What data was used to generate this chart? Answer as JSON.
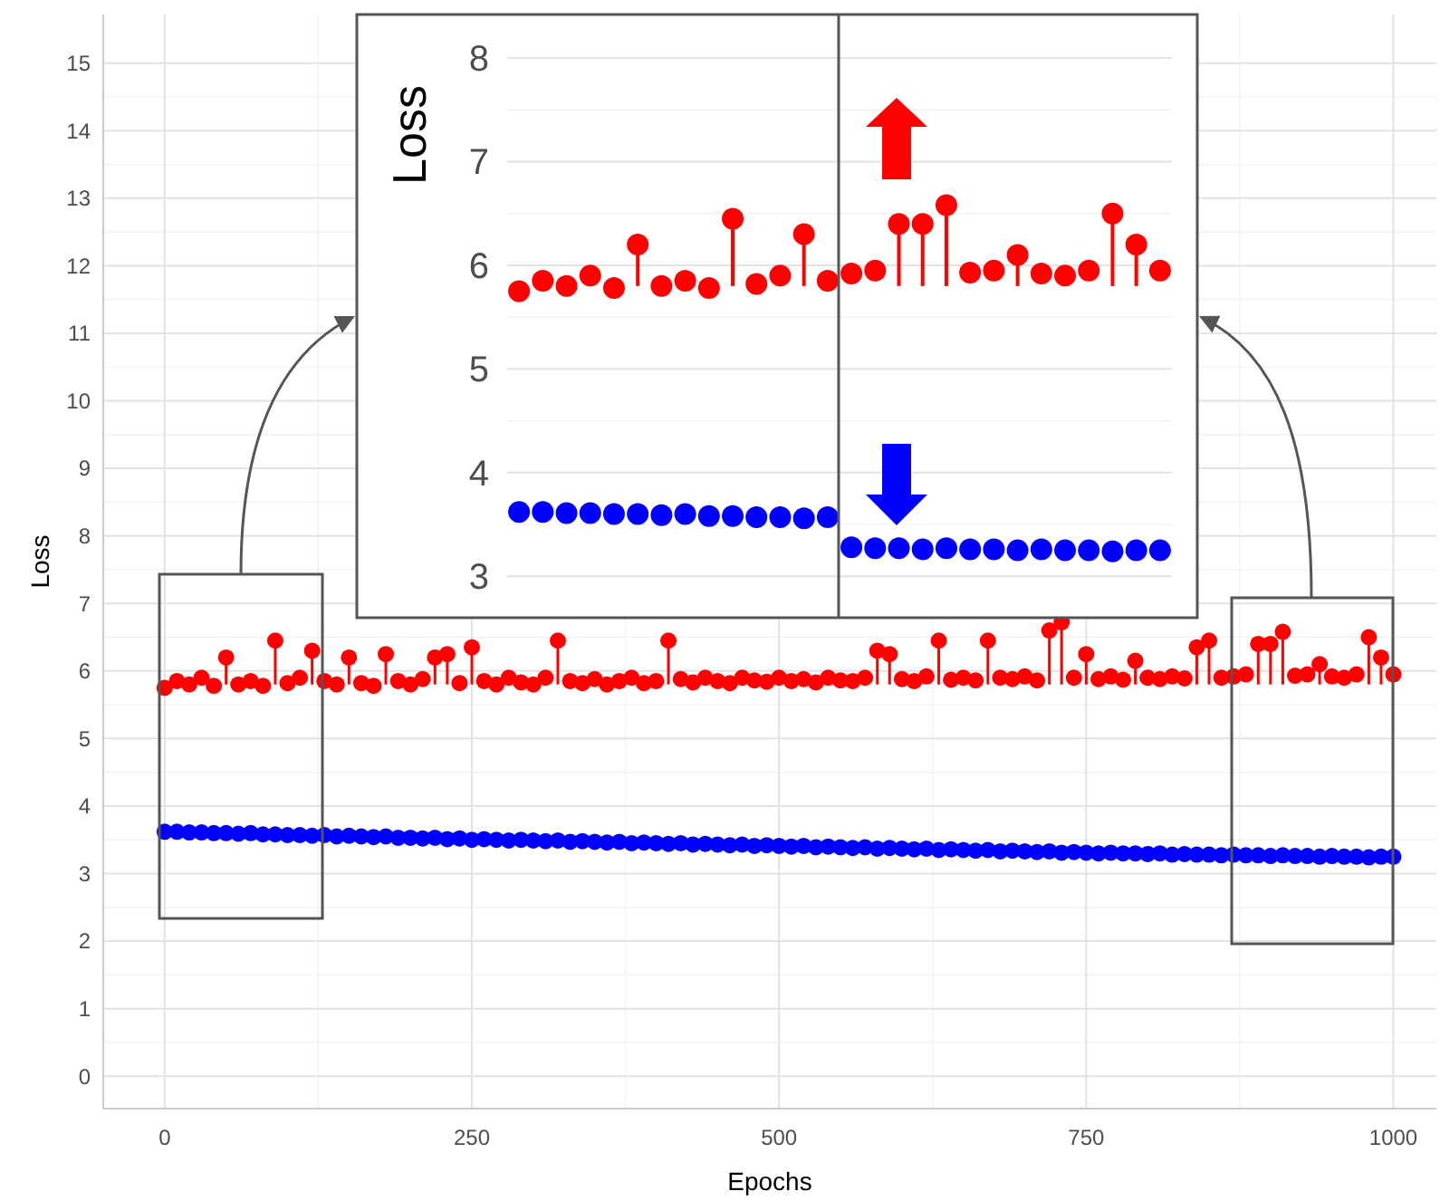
{
  "chart_data": [
    {
      "type": "scatter",
      "xlabel": "Epochs",
      "ylabel": "Loss",
      "xlim": [
        -50,
        1035
      ],
      "ylim": [
        -0.48,
        15.72
      ],
      "xticks": [
        0,
        250,
        500,
        750,
        1000
      ],
      "yticks": [
        0,
        1,
        2,
        3,
        4,
        5,
        6,
        7,
        8,
        9,
        10,
        11,
        12,
        13,
        14,
        15
      ],
      "grid": true,
      "marker": "circle",
      "x": [
        0,
        10,
        20,
        30,
        40,
        50,
        60,
        70,
        80,
        90,
        100,
        110,
        120,
        130,
        140,
        150,
        160,
        170,
        180,
        190,
        200,
        210,
        220,
        230,
        240,
        250,
        260,
        270,
        280,
        290,
        300,
        310,
        320,
        330,
        340,
        350,
        360,
        370,
        380,
        390,
        400,
        410,
        420,
        430,
        440,
        450,
        460,
        470,
        480,
        490,
        500,
        510,
        520,
        530,
        540,
        550,
        560,
        570,
        580,
        590,
        600,
        610,
        620,
        630,
        640,
        650,
        660,
        670,
        680,
        690,
        700,
        710,
        720,
        730,
        740,
        750,
        760,
        770,
        780,
        790,
        800,
        810,
        820,
        830,
        840,
        850,
        860,
        870,
        880,
        890,
        900,
        910,
        920,
        930,
        940,
        950,
        960,
        970,
        980,
        990,
        1000
      ],
      "series": [
        {
          "color": "#ff0000",
          "values": [
            5.75,
            5.85,
            5.8,
            5.9,
            5.78,
            6.2,
            5.8,
            5.85,
            5.78,
            6.45,
            5.82,
            5.9,
            6.3,
            5.85,
            5.8,
            6.2,
            5.82,
            5.78,
            6.25,
            5.85,
            5.8,
            5.88,
            6.2,
            6.25,
            5.82,
            6.35,
            5.85,
            5.8,
            5.9,
            5.83,
            5.8,
            5.9,
            6.45,
            5.85,
            5.82,
            5.88,
            5.8,
            5.85,
            5.9,
            5.82,
            5.85,
            6.45,
            5.88,
            5.83,
            5.9,
            5.85,
            5.82,
            5.9,
            5.86,
            5.84,
            5.9,
            5.85,
            5.88,
            5.83,
            5.9,
            5.86,
            5.85,
            5.9,
            6.3,
            6.25,
            5.88,
            5.85,
            5.92,
            6.45,
            5.87,
            5.9,
            5.86,
            6.45,
            5.9,
            5.88,
            5.92,
            5.86,
            6.6,
            6.72,
            5.9,
            6.25,
            5.88,
            5.92,
            5.87,
            6.15,
            5.9,
            5.88,
            5.92,
            5.89,
            6.35,
            6.45,
            5.9,
            5.92,
            5.95,
            6.4,
            6.4,
            6.58,
            5.93,
            5.95,
            6.1,
            5.92,
            5.9,
            5.95,
            6.5,
            6.2,
            5.95
          ],
          "errors": [
            null,
            null,
            null,
            null,
            null,
            [
              5.8,
              6.2
            ],
            null,
            null,
            null,
            [
              5.8,
              6.45
            ],
            null,
            null,
            [
              5.8,
              6.3
            ],
            null,
            null,
            [
              5.8,
              6.2
            ],
            null,
            null,
            [
              5.8,
              6.25
            ],
            null,
            null,
            null,
            [
              5.8,
              6.2
            ],
            [
              5.8,
              6.25
            ],
            null,
            [
              5.8,
              6.35
            ],
            null,
            null,
            null,
            null,
            null,
            null,
            [
              5.8,
              6.45
            ],
            null,
            null,
            null,
            null,
            null,
            null,
            null,
            null,
            [
              5.8,
              6.45
            ],
            null,
            null,
            null,
            null,
            null,
            null,
            null,
            null,
            null,
            null,
            null,
            null,
            null,
            null,
            null,
            null,
            [
              5.8,
              6.3
            ],
            [
              5.8,
              6.25
            ],
            null,
            null,
            null,
            [
              5.8,
              6.45
            ],
            null,
            null,
            null,
            [
              5.8,
              6.45
            ],
            null,
            null,
            null,
            null,
            [
              5.8,
              6.6
            ],
            [
              5.8,
              6.72
            ],
            null,
            [
              5.8,
              6.25
            ],
            null,
            null,
            null,
            [
              5.8,
              6.15
            ],
            null,
            null,
            null,
            null,
            [
              5.8,
              6.35
            ],
            [
              5.8,
              6.45
            ],
            null,
            null,
            null,
            [
              5.8,
              6.4
            ],
            [
              5.8,
              6.4
            ],
            [
              5.8,
              6.58
            ],
            null,
            null,
            [
              5.8,
              6.1
            ],
            null,
            null,
            null,
            [
              5.8,
              6.5
            ],
            [
              5.8,
              6.2
            ],
            null
          ]
        },
        {
          "color": "#0000ff",
          "values": [
            3.62,
            3.62,
            3.61,
            3.61,
            3.6,
            3.6,
            3.59,
            3.6,
            3.58,
            3.58,
            3.57,
            3.57,
            3.56,
            3.57,
            3.55,
            3.56,
            3.55,
            3.54,
            3.55,
            3.53,
            3.53,
            3.52,
            3.53,
            3.51,
            3.52,
            3.5,
            3.51,
            3.5,
            3.49,
            3.5,
            3.49,
            3.48,
            3.49,
            3.47,
            3.48,
            3.47,
            3.46,
            3.47,
            3.45,
            3.46,
            3.45,
            3.44,
            3.45,
            3.43,
            3.44,
            3.43,
            3.42,
            3.43,
            3.41,
            3.42,
            3.41,
            3.4,
            3.41,
            3.39,
            3.4,
            3.39,
            3.38,
            3.39,
            3.37,
            3.38,
            3.37,
            3.36,
            3.37,
            3.35,
            3.36,
            3.35,
            3.34,
            3.35,
            3.33,
            3.34,
            3.33,
            3.32,
            3.33,
            3.31,
            3.32,
            3.31,
            3.3,
            3.31,
            3.3,
            3.3,
            3.29,
            3.3,
            3.28,
            3.29,
            3.28,
            3.28,
            3.27,
            3.28,
            3.27,
            3.27,
            3.26,
            3.27,
            3.26,
            3.26,
            3.25,
            3.26,
            3.25,
            3.25,
            3.24,
            3.25,
            3.25
          ]
        }
      ]
    },
    {
      "type": "scatter",
      "ylabel": "Loss",
      "ylim": [
        2.6,
        8.42
      ],
      "yticks": [
        3,
        4,
        5,
        6,
        7,
        8
      ],
      "grid": "y",
      "marker": "circle",
      "tick_labels": "y",
      "categories": [
        null,
        null,
        null,
        null,
        null,
        null,
        null,
        null,
        null,
        null,
        null,
        null,
        null,
        null,
        null,
        null,
        null,
        null,
        null,
        null,
        null,
        null,
        null,
        null,
        null,
        null,
        null,
        null
      ],
      "series": [
        {
          "color": "#ff0000",
          "values": [
            5.75,
            5.85,
            5.8,
            5.9,
            5.78,
            6.2,
            5.8,
            5.85,
            5.78,
            6.45,
            5.82,
            5.9,
            6.3,
            5.85,
            5.92,
            5.95,
            6.4,
            6.4,
            6.58,
            5.93,
            5.95,
            6.1,
            5.92,
            5.9,
            5.95,
            6.5,
            6.2,
            5.95
          ],
          "errors": [
            null,
            null,
            null,
            null,
            null,
            [
              5.8,
              6.2
            ],
            null,
            null,
            null,
            [
              5.8,
              6.45
            ],
            null,
            null,
            [
              5.8,
              6.3
            ],
            null,
            null,
            null,
            [
              5.8,
              6.4
            ],
            [
              5.8,
              6.4
            ],
            [
              5.8,
              6.58
            ],
            null,
            null,
            [
              5.8,
              6.1
            ],
            null,
            null,
            null,
            [
              5.8,
              6.5
            ],
            [
              5.8,
              6.2
            ],
            null
          ]
        },
        {
          "color": "#0000ff",
          "values": [
            3.62,
            3.62,
            3.61,
            3.61,
            3.6,
            3.6,
            3.59,
            3.6,
            3.58,
            3.58,
            3.57,
            3.57,
            3.56,
            3.57,
            3.28,
            3.27,
            3.27,
            3.26,
            3.27,
            3.26,
            3.26,
            3.25,
            3.26,
            3.25,
            3.25,
            3.24,
            3.25,
            3.25
          ]
        }
      ]
    }
  ]
}
